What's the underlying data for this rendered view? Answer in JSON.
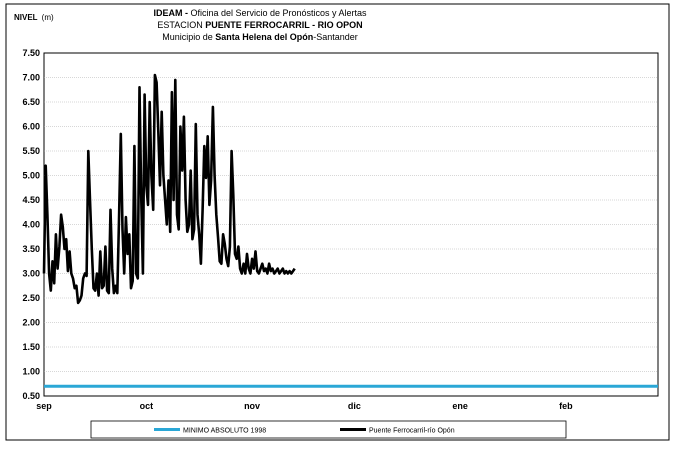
{
  "chart_data": {
    "type": "line",
    "ylabel_main": "NIVEL",
    "ylabel_unit": "(m)",
    "title_lines": [
      [
        {
          "text": "IDEAM - ",
          "bold": true
        },
        {
          "text": "Oficina del Servicio de Pronósticos y Alertas",
          "bold": false
        }
      ],
      [
        {
          "text": "ESTACION ",
          "bold": false
        },
        {
          "text": "PUENTE FERROCARRIL - RIO OPON",
          "bold": true
        }
      ],
      [
        {
          "text": "Municipio de ",
          "bold": false
        },
        {
          "text": "Santa Helena del Opón",
          "bold": true
        },
        {
          "text": "-Santander",
          "bold": false
        }
      ]
    ],
    "ylim": [
      0.5,
      7.5
    ],
    "yticks": [
      0.5,
      1.0,
      1.5,
      2.0,
      2.5,
      3.0,
      3.5,
      4.0,
      4.5,
      5.0,
      5.5,
      6.0,
      6.5,
      7.0,
      7.5
    ],
    "xlim_days": [
      0,
      180
    ],
    "month_ticks": [
      {
        "label": "sep",
        "day": 0
      },
      {
        "label": "oct",
        "day": 30
      },
      {
        "label": "nov",
        "day": 61
      },
      {
        "label": "dic",
        "day": 91
      },
      {
        "label": "ene",
        "day": 122
      },
      {
        "label": "feb",
        "day": 153
      }
    ],
    "grid": true,
    "series": [
      {
        "name": "MINIMO ABSOLUTO 1998",
        "color": "#2aa7d6",
        "constant": 0.7
      },
      {
        "name": "Puente Ferrocarril-río Opón",
        "color": "#000000",
        "x": [
          0,
          0.5,
          1,
          1.5,
          2,
          2.5,
          3,
          3.5,
          4,
          4.5,
          5,
          5.5,
          6,
          6.5,
          7,
          7.5,
          8,
          8.5,
          9,
          9.5,
          10,
          10.5,
          11,
          11.5,
          12,
          12.5,
          13,
          13.5,
          14,
          14.5,
          15,
          15.5,
          16,
          16.5,
          17,
          17.5,
          18,
          18.5,
          19,
          19.5,
          20,
          20.5,
          21,
          21.5,
          22,
          22.5,
          23,
          23.5,
          24,
          24.5,
          25,
          25.5,
          26,
          26.5,
          27,
          27.5,
          28,
          28.5,
          29,
          29.5,
          30,
          30.5,
          31,
          31.5,
          32,
          32.5,
          33,
          33.5,
          34,
          34.5,
          35,
          35.5,
          36,
          36.5,
          37,
          37.5,
          38,
          38.5,
          39,
          39.5,
          40,
          40.5,
          41,
          41.5,
          42,
          42.5,
          43,
          43.5,
          44,
          44.5,
          45,
          45.5,
          46,
          46.5,
          47,
          47.5,
          48,
          48.5,
          49,
          49.5,
          50,
          50.5,
          51,
          51.5,
          52,
          52.5,
          53,
          53.5,
          54,
          54.5,
          55,
          55.5,
          56,
          56.5,
          57,
          57.5,
          58,
          58.5,
          59,
          59.5,
          60,
          60.5,
          61,
          61.5,
          62,
          62.5,
          63,
          63.5,
          64,
          64.5,
          65,
          65.5,
          66,
          66.5,
          67,
          67.5,
          68,
          68.5,
          69,
          69.5,
          70,
          70.5,
          71,
          71.5,
          72,
          72.5,
          73,
          73.5
        ],
        "y": [
          3.0,
          5.2,
          4.2,
          3.0,
          2.65,
          3.25,
          2.8,
          3.8,
          3.1,
          3.55,
          4.2,
          3.95,
          3.5,
          3.7,
          3.05,
          3.45,
          3.0,
          2.9,
          2.7,
          2.75,
          2.4,
          2.45,
          2.55,
          2.9,
          3.0,
          2.95,
          5.5,
          4.5,
          3.5,
          2.7,
          2.65,
          3.0,
          2.55,
          3.45,
          2.7,
          2.75,
          3.55,
          2.65,
          2.6,
          4.3,
          3.1,
          2.6,
          2.75,
          2.6,
          4.1,
          5.85,
          3.9,
          3.0,
          4.15,
          3.4,
          3.8,
          2.7,
          2.85,
          5.6,
          3.0,
          2.9,
          6.8,
          4.6,
          3.0,
          6.65,
          4.8,
          4.4,
          6.5,
          5.0,
          4.3,
          7.05,
          6.9,
          5.9,
          4.8,
          6.3,
          5.0,
          4.5,
          4.0,
          4.9,
          3.85,
          6.7,
          4.5,
          6.95,
          4.2,
          3.9,
          6.0,
          5.1,
          6.2,
          4.5,
          3.85,
          4.0,
          5.1,
          3.7,
          3.9,
          6.05,
          4.2,
          3.8,
          3.2,
          4.3,
          5.6,
          4.95,
          5.8,
          4.4,
          4.9,
          6.4,
          5.0,
          4.2,
          3.75,
          3.25,
          3.2,
          3.8,
          3.6,
          3.3,
          3.15,
          3.55,
          5.5,
          4.6,
          3.4,
          3.3,
          3.55,
          3.1,
          3.0,
          3.2,
          3.0,
          3.4,
          3.1,
          3.0,
          3.3,
          3.1,
          3.45,
          3.05,
          3.0,
          3.1,
          3.2,
          3.05,
          3.1,
          3.0,
          3.2,
          3.05,
          3.1,
          3.0,
          3.05,
          3.1,
          3.0,
          3.05,
          3.1,
          3.0,
          3.05,
          3.0,
          3.05,
          3.0,
          3.05,
          3.1
        ]
      }
    ]
  }
}
